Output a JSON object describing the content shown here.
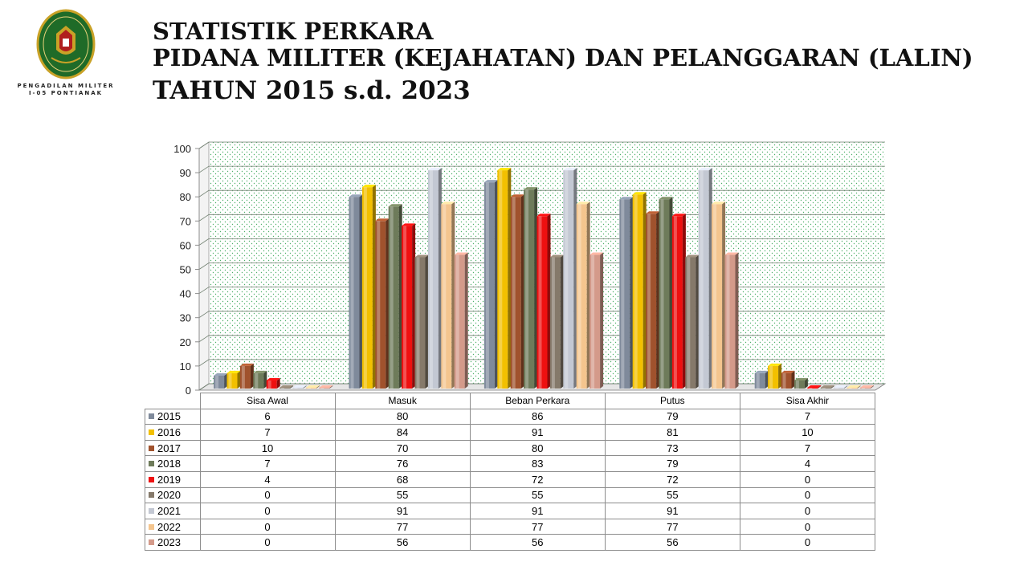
{
  "header": {
    "org_name_line1": "PENGADILAN MILITER",
    "org_name_line2": "I-05 PONTIANAK",
    "title_line1": "STATISTIK PERKARA",
    "title_line2": "PIDANA MILITER (KEJAHATAN) DAN PELANGGARAN (LALIN)",
    "title_line3": "TAHUN 2015 s.d. 2023"
  },
  "chart_data": {
    "type": "bar",
    "title": "STATISTIK PERKARA PIDANA MILITER (KEJAHATAN) DAN PELANGGARAN (LALIN) TAHUN 2015 s.d. 2023",
    "categories": [
      "Sisa Awal",
      "Masuk",
      "Beban Perkara",
      "Putus",
      "Sisa Akhir"
    ],
    "ylim": [
      0,
      100
    ],
    "yticks": [
      0,
      10,
      20,
      30,
      40,
      50,
      60,
      70,
      80,
      90,
      100
    ],
    "grid": true,
    "legend": "data-table-below",
    "series": [
      {
        "name": "2015",
        "color": "#7f8a9b",
        "values": [
          6,
          80,
          86,
          79,
          7
        ]
      },
      {
        "name": "2016",
        "color": "#f2c000",
        "values": [
          7,
          84,
          91,
          81,
          10
        ]
      },
      {
        "name": "2017",
        "color": "#a0522d",
        "values": [
          10,
          70,
          80,
          73,
          7
        ]
      },
      {
        "name": "2018",
        "color": "#6e7b5a",
        "values": [
          7,
          76,
          83,
          79,
          4
        ]
      },
      {
        "name": "2019",
        "color": "#ee1010",
        "values": [
          4,
          68,
          72,
          72,
          0
        ]
      },
      {
        "name": "2020",
        "color": "#85796a",
        "values": [
          0,
          55,
          55,
          55,
          0
        ]
      },
      {
        "name": "2021",
        "color": "#c3c8d3",
        "values": [
          0,
          91,
          91,
          91,
          0
        ]
      },
      {
        "name": "2022",
        "color": "#f4c58e",
        "values": [
          0,
          77,
          77,
          77,
          0
        ]
      },
      {
        "name": "2023",
        "color": "#d49a8a",
        "values": [
          0,
          56,
          56,
          56,
          0
        ]
      }
    ]
  }
}
